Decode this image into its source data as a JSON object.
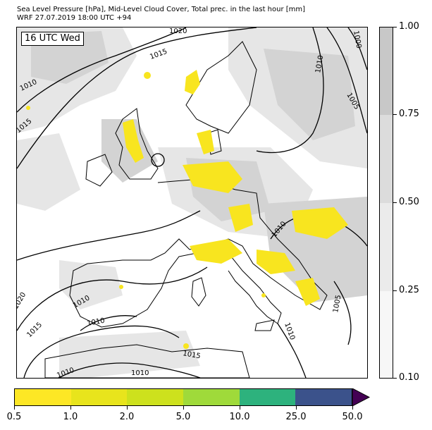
{
  "title": {
    "line1": "Sea Level Pressure [hPa], Mid-Level Cloud Cover, Total prec. in the last hour [mm]",
    "line2": "WRF 27.07.2019 18:00 UTC +94"
  },
  "map": {
    "time_label": "16 UTC Wed",
    "isobar_labels": [
      "1020",
      "1015",
      "1010",
      "1015",
      "1010",
      "1005",
      "1000",
      "1010",
      "1010",
      "1020",
      "1015",
      "1010",
      "1010",
      "1015",
      "1010",
      "1010",
      "1005"
    ],
    "colors": {
      "cloud_light": "#e6e6e6",
      "cloud_mid": "#d3d3d3",
      "cloud_dense": "#c0c0c0",
      "precip": "#f8e51f"
    }
  },
  "cloud_colorbar": {
    "ticks": [
      "1.00",
      "0.75",
      "0.50",
      "0.25",
      "0.10"
    ],
    "band_colors": [
      "#c8c8c8",
      "#dcdcdc",
      "#ebebeb",
      "#f7f7f7"
    ]
  },
  "precip_colorbar": {
    "ticks": [
      "0.5",
      "1.0",
      "2.0",
      "5.0",
      "10.0",
      "25.0",
      "50.0"
    ],
    "segment_colors": [
      "#fde725",
      "#e8e41c",
      "#cde11d",
      "#9fda3a",
      "#2db27d",
      "#3b528b",
      "#440154"
    ]
  }
}
